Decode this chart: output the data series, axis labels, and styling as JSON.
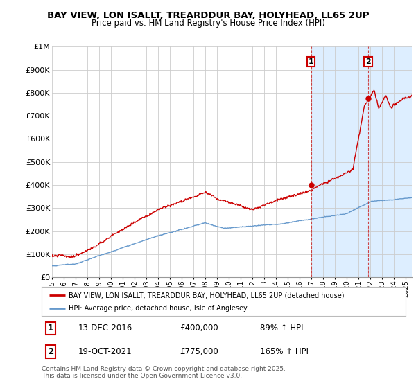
{
  "title_line1": "BAY VIEW, LON ISALLT, TREARDDUR BAY, HOLYHEAD, LL65 2UP",
  "title_line2": "Price paid vs. HM Land Registry's House Price Index (HPI)",
  "legend_label1": "BAY VIEW, LON ISALLT, TREARDDUR BAY, HOLYHEAD, LL65 2UP (detached house)",
  "legend_label2": "HPI: Average price, detached house, Isle of Anglesey",
  "annotation1_label": "1",
  "annotation1_date": "13-DEC-2016",
  "annotation1_price": "£400,000",
  "annotation1_hpi": "89% ↑ HPI",
  "annotation2_label": "2",
  "annotation2_date": "19-OCT-2021",
  "annotation2_price": "£775,000",
  "annotation2_hpi": "165% ↑ HPI",
  "footnote": "Contains HM Land Registry data © Crown copyright and database right 2025.\nThis data is licensed under the Open Government Licence v3.0.",
  "line1_color": "#cc0000",
  "line2_color": "#6699cc",
  "highlight_color": "#ddeeff",
  "vline_color": "#cc3333",
  "annotation_box_color": "#cc0000",
  "background_color": "#ffffff",
  "ylim": [
    0,
    1000000
  ],
  "yticks": [
    0,
    100000,
    200000,
    300000,
    400000,
    500000,
    600000,
    700000,
    800000,
    900000,
    1000000
  ],
  "ytick_labels": [
    "£0",
    "£100K",
    "£200K",
    "£300K",
    "£400K",
    "£500K",
    "£600K",
    "£700K",
    "£800K",
    "£900K",
    "£1M"
  ],
  "sale1_x": 2016.95,
  "sale1_y": 400000,
  "sale2_x": 2021.8,
  "sale2_y": 775000,
  "highlight_start": 2017.0,
  "xmin": 1995.0,
  "xmax": 2025.5
}
